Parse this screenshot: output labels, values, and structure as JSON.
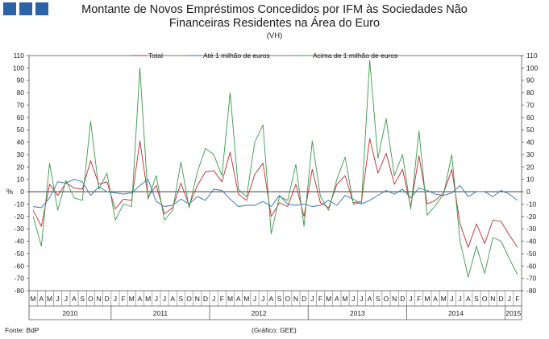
{
  "header": {
    "title_line1": "Montante de Novos Empréstimos Concedidos por IFM às Sociedades Não",
    "title_line2": "Financeiras Residentes na Área do Euro",
    "subtitle": "(VH)"
  },
  "footer": {
    "source": "Fonte: BdP",
    "credit": "(Gráfico: GEE)"
  },
  "chart_data": {
    "type": "line",
    "y_unit_label": "%",
    "ylim": [
      -80,
      110
    ],
    "y_ticks": [
      110,
      100,
      90,
      80,
      70,
      60,
      50,
      40,
      30,
      20,
      10,
      0,
      -10,
      -20,
      -30,
      -40,
      -50,
      -60,
      -70,
      -80
    ],
    "grid": false,
    "legend_position": "top",
    "x_month_labels": [
      "M",
      "A",
      "M",
      "J",
      "J",
      "A",
      "S",
      "O",
      "N",
      "D",
      "J",
      "F",
      "M",
      "A",
      "M",
      "J",
      "J",
      "A",
      "S",
      "O",
      "N",
      "D",
      "J",
      "F",
      "M",
      "A",
      "M",
      "J",
      "J",
      "A",
      "S",
      "O",
      "N",
      "D",
      "J",
      "F",
      "M",
      "A",
      "M",
      "J",
      "J",
      "A",
      "S",
      "O",
      "N",
      "D",
      "J",
      "F",
      "M",
      "A",
      "M",
      "J",
      "J",
      "A",
      "S",
      "O",
      "N",
      "D",
      "J",
      "F"
    ],
    "x_year_groups": [
      {
        "label": "2010",
        "start": 0,
        "count": 10
      },
      {
        "label": "2011",
        "start": 10,
        "count": 12
      },
      {
        "label": "2012",
        "start": 22,
        "count": 12
      },
      {
        "label": "2013",
        "start": 34,
        "count": 12
      },
      {
        "label": "2014",
        "start": 46,
        "count": 12
      },
      {
        "label": "2015",
        "start": 58,
        "count": 2
      }
    ],
    "series": [
      {
        "name": "Total",
        "color": "#c0282d",
        "values": [
          -15,
          -28,
          6,
          -3,
          7,
          3,
          2,
          25,
          6,
          8,
          -14,
          -6,
          -7,
          41,
          -4,
          5,
          -18,
          -13,
          7,
          -11,
          5,
          16,
          17,
          8,
          32,
          -2,
          -7,
          14,
          23,
          -20,
          -9,
          -12,
          6,
          -20,
          18,
          -9,
          -13,
          6,
          13,
          -9,
          -8,
          43,
          15,
          31,
          6,
          18,
          -12,
          29,
          -10,
          -7,
          -1,
          18,
          -26,
          -45,
          -26,
          -42,
          -23,
          -24,
          -35,
          -45
        ]
      },
      {
        "name": "Até 1 milhão de euros",
        "color": "#2e6fae",
        "values": [
          -12,
          -13,
          -5,
          8,
          7,
          10,
          8,
          -3,
          4,
          0,
          -1,
          -2,
          -1,
          5,
          10,
          -8,
          -12,
          -11,
          -6,
          -10,
          -4,
          -7,
          2,
          1,
          -6,
          -12,
          -11,
          -11,
          -8,
          -12,
          -3,
          -10,
          -11,
          -10,
          -12,
          -11,
          -7,
          -11,
          -3,
          -6,
          -10,
          -7,
          -3,
          1,
          -2,
          2,
          -5,
          3,
          1,
          -2,
          -3,
          -1,
          5,
          -4,
          0,
          0,
          -4,
          1,
          -2,
          -7
        ]
      },
      {
        "name": "Acima de 1 milhão de euros",
        "color": "#3a9a4a",
        "values": [
          -20,
          -44,
          23,
          -15,
          9,
          -5,
          -7,
          57,
          2,
          15,
          -23,
          -10,
          -12,
          100,
          -6,
          13,
          -23,
          -15,
          24,
          -13,
          16,
          35,
          30,
          13,
          80,
          2,
          -4,
          40,
          54,
          -34,
          -4,
          -7,
          22,
          -28,
          41,
          -4,
          -15,
          10,
          28,
          -10,
          -9,
          106,
          27,
          59,
          13,
          30,
          -14,
          49,
          -19,
          -11,
          -2,
          30,
          -40,
          -69,
          -44,
          -66,
          -37,
          -40,
          -54,
          -67
        ]
      }
    ]
  }
}
